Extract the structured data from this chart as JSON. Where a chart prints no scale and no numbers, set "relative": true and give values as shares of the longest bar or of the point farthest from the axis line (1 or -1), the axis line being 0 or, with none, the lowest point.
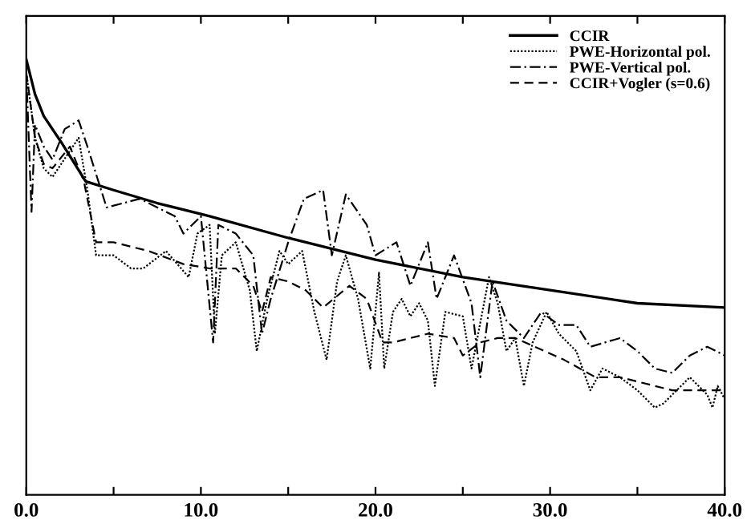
{
  "chart_data": {
    "type": "line",
    "relative": true,
    "legend": "top right",
    "grid": false,
    "marker": "none",
    "xlim": [
      0,
      40
    ],
    "xticks": [
      {
        "value": 0,
        "label": "0.0"
      },
      {
        "value": 5,
        "label": null
      },
      {
        "value": 10,
        "label": "10.0"
      },
      {
        "value": 15,
        "label": null
      },
      {
        "value": 20,
        "label": "20.0"
      },
      {
        "value": 25,
        "label": null
      },
      {
        "value": 30,
        "label": "30.0"
      },
      {
        "value": 35,
        "label": null
      },
      {
        "value": 40,
        "label": "40.0"
      }
    ],
    "tick_labels": "x",
    "series": [
      {
        "name": "CCIR",
        "color": "#000000",
        "line_style": "solid",
        "x": [
          0,
          0.5,
          1,
          2,
          3.4,
          5,
          7.5,
          10.5,
          15,
          20,
          25,
          30,
          35,
          40
        ],
        "values": [
          1.0,
          0.92,
          0.87,
          0.81,
          0.72,
          0.7,
          0.67,
          0.64,
          0.59,
          0.54,
          0.5,
          0.47,
          0.44,
          0.43
        ]
      },
      {
        "name": "PWE-Horizontal pol.",
        "color": "#000000",
        "line_style": "dotted",
        "x": [
          0,
          0.5,
          1,
          1.5,
          3,
          3.5,
          4,
          5,
          6,
          6.7,
          8,
          9.3,
          9.8,
          10.5,
          10.8,
          11.2,
          12,
          12.8,
          13.2,
          13.8,
          14.5,
          15,
          15.8,
          16.5,
          17.2,
          17.8,
          18.3,
          19,
          19.7,
          20.2,
          20.5,
          21,
          21.5,
          22,
          22.5,
          23,
          23.4,
          24,
          25,
          25.5,
          26.5,
          27,
          27.5,
          28,
          28.5,
          29,
          29.8,
          30.5,
          31.5,
          32.3,
          33,
          34,
          35,
          36,
          36.5,
          37.5,
          38,
          39,
          39.3,
          39.6,
          40
        ],
        "values": [
          0.97,
          0.82,
          0.75,
          0.73,
          0.82,
          0.7,
          0.55,
          0.55,
          0.52,
          0.52,
          0.56,
          0.5,
          0.6,
          0.62,
          0.37,
          0.55,
          0.58,
          0.47,
          0.33,
          0.45,
          0.56,
          0.53,
          0.56,
          0.42,
          0.31,
          0.49,
          0.55,
          0.45,
          0.29,
          0.51,
          0.29,
          0.42,
          0.45,
          0.41,
          0.44,
          0.4,
          0.25,
          0.42,
          0.41,
          0.29,
          0.5,
          0.44,
          0.33,
          0.36,
          0.25,
          0.35,
          0.42,
          0.37,
          0.33,
          0.24,
          0.29,
          0.27,
          0.24,
          0.2,
          0.21,
          0.25,
          0.27,
          0.23,
          0.2,
          0.25,
          0.22
        ]
      },
      {
        "name": "PWE-Vertical pol.",
        "color": "#000000",
        "line_style": "dashdot",
        "x": [
          0,
          0.3,
          0.5,
          1,
          1.5,
          2.2,
          3,
          3.5,
          4.6,
          6.5,
          8.5,
          9,
          10,
          10.7,
          11,
          12,
          13,
          13.5,
          14,
          15,
          15.9,
          17,
          17.5,
          18.3,
          19.5,
          20,
          21.2,
          22,
          23,
          23.5,
          24.5,
          25.5,
          26,
          26.7,
          27.5,
          28.5,
          29.5,
          30.5,
          31.5,
          32.3,
          34,
          35,
          36,
          37,
          38,
          39,
          40
        ],
        "values": [
          0.97,
          0.65,
          0.85,
          0.8,
          0.77,
          0.84,
          0.86,
          0.8,
          0.66,
          0.68,
          0.64,
          0.6,
          0.64,
          0.35,
          0.62,
          0.6,
          0.55,
          0.37,
          0.45,
          0.58,
          0.68,
          0.7,
          0.55,
          0.69,
          0.62,
          0.55,
          0.58,
          0.48,
          0.58,
          0.45,
          0.55,
          0.44,
          0.27,
          0.49,
          0.4,
          0.36,
          0.42,
          0.39,
          0.39,
          0.34,
          0.36,
          0.33,
          0.29,
          0.28,
          0.32,
          0.34,
          0.32
        ]
      },
      {
        "name": "CCIR+Vogler (s=0.6)",
        "color": "#000000",
        "line_style": "dashed",
        "x": [
          0,
          0.5,
          1,
          1.5,
          2.5,
          3.3,
          4,
          5,
          7,
          9,
          10.5,
          12,
          13,
          13.5,
          14,
          15,
          16,
          17,
          18.5,
          19.5,
          20.4,
          21,
          22,
          23,
          24.5,
          25,
          26,
          27,
          28,
          30.8,
          32.6,
          34,
          37,
          40
        ],
        "values": [
          0.97,
          0.82,
          0.76,
          0.75,
          0.8,
          0.72,
          0.58,
          0.58,
          0.56,
          0.53,
          0.52,
          0.52,
          0.48,
          0.42,
          0.5,
          0.49,
          0.47,
          0.43,
          0.48,
          0.45,
          0.35,
          0.35,
          0.36,
          0.37,
          0.36,
          0.32,
          0.35,
          0.36,
          0.36,
          0.31,
          0.27,
          0.27,
          0.24,
          0.24
        ]
      }
    ]
  }
}
